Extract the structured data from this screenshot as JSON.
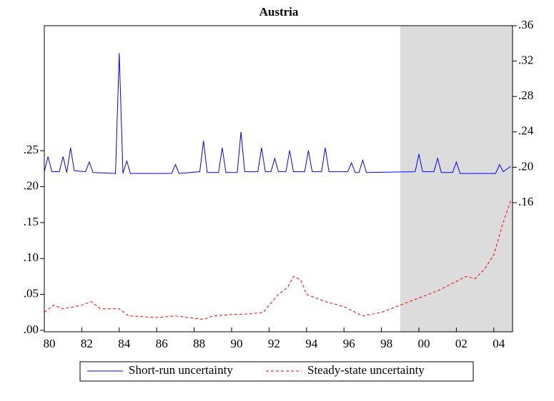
{
  "chart_data": {
    "type": "line",
    "title": "Austria",
    "xlim": [
      1980,
      2005
    ],
    "ylim": [
      -0.002,
      0.424
    ],
    "y2lim": [
      0.014,
      0.36
    ],
    "xticks": [
      {
        "value": 1980,
        "label": "80"
      },
      {
        "value": 1982,
        "label": "82"
      },
      {
        "value": 1984,
        "label": "84"
      },
      {
        "value": 1986,
        "label": "86"
      },
      {
        "value": 1988,
        "label": "88"
      },
      {
        "value": 1990,
        "label": "90"
      },
      {
        "value": 1992,
        "label": "92"
      },
      {
        "value": 1994,
        "label": "94"
      },
      {
        "value": 1996,
        "label": "96"
      },
      {
        "value": 1998,
        "label": "98"
      },
      {
        "value": 2000,
        "label": "00"
      },
      {
        "value": 2002,
        "label": "02"
      },
      {
        "value": 2004,
        "label": "04"
      }
    ],
    "yticks": [
      {
        "value": 0,
        "label": ".00"
      },
      {
        "value": 0.05,
        "label": ".05"
      },
      {
        "value": 0.1,
        "label": ".10"
      },
      {
        "value": 0.15,
        "label": ".15"
      },
      {
        "value": 0.2,
        "label": ".20"
      },
      {
        "value": 0.25,
        "label": ".25"
      }
    ],
    "y2ticks": [
      {
        "value": 0.16,
        "label": ".16"
      },
      {
        "value": 0.2,
        "label": ".20"
      },
      {
        "value": 0.24,
        "label": ".24"
      },
      {
        "value": 0.28,
        "label": ".28"
      },
      {
        "value": 0.32,
        "label": ".32"
      },
      {
        "value": 0.36,
        "label": ".36"
      }
    ],
    "shade": [
      1999,
      2005
    ],
    "shade_color": "#dcdcdc",
    "legend": "bottom",
    "series": [
      {
        "name": "Short-run uncertainty",
        "color": "#0000ff",
        "dash": false,
        "axis": "y2",
        "x": [
          1980.0,
          1980.2,
          1980.4,
          1980.8,
          1981.0,
          1981.2,
          1981.4,
          1981.6,
          1982.2,
          1982.4,
          1982.6,
          1983.8,
          1984.0,
          1984.2,
          1984.4,
          1984.6,
          1986.8,
          1987.0,
          1987.2,
          1988.3,
          1988.5,
          1988.7,
          1989.3,
          1989.5,
          1989.7,
          1990.3,
          1990.5,
          1990.7,
          1991.4,
          1991.6,
          1991.8,
          1992.1,
          1992.3,
          1992.5,
          1992.9,
          1993.1,
          1993.3,
          1993.9,
          1994.1,
          1994.3,
          1994.8,
          1995.0,
          1995.2,
          1996.2,
          1996.4,
          1996.6,
          1996.8,
          1997.0,
          1997.2,
          1999.8,
          2000.0,
          2000.2,
          2000.8,
          2001.0,
          2001.2,
          2001.8,
          2002.0,
          2002.2,
          2004.1,
          2004.3,
          2004.5,
          2004.9
        ],
        "values": [
          0.195,
          0.212,
          0.195,
          0.195,
          0.212,
          0.194,
          0.222,
          0.196,
          0.195,
          0.206,
          0.194,
          0.193,
          0.329,
          0.193,
          0.207,
          0.193,
          0.193,
          0.203,
          0.193,
          0.195,
          0.23,
          0.194,
          0.194,
          0.222,
          0.194,
          0.194,
          0.24,
          0.195,
          0.195,
          0.222,
          0.195,
          0.195,
          0.21,
          0.195,
          0.195,
          0.219,
          0.195,
          0.195,
          0.219,
          0.195,
          0.195,
          0.222,
          0.195,
          0.195,
          0.205,
          0.194,
          0.194,
          0.208,
          0.194,
          0.195,
          0.215,
          0.195,
          0.195,
          0.21,
          0.194,
          0.194,
          0.206,
          0.193,
          0.193,
          0.203,
          0.195,
          0.201
        ]
      },
      {
        "name": "Steady-state uncertainty",
        "color": "#ff0000",
        "dash": true,
        "axis": "y",
        "x": [
          1980.0,
          1980.5,
          1981.0,
          1982.0,
          1982.5,
          1983.0,
          1984.0,
          1984.5,
          1986.0,
          1987.0,
          1988.0,
          1988.5,
          1989.0,
          1990.0,
          1991.0,
          1991.7,
          1992.0,
          1992.5,
          1993.0,
          1993.3,
          1993.7,
          1994.0,
          1994.5,
          1995.0,
          1996.0,
          1997.0,
          1998.0,
          1999.0,
          1999.5,
          2000.0,
          2001.0,
          2002.0,
          2002.5,
          2003.0,
          2003.5,
          2004.0,
          2004.5,
          2004.9
        ],
        "values": [
          0.025,
          0.035,
          0.03,
          0.035,
          0.04,
          0.03,
          0.03,
          0.02,
          0.018,
          0.02,
          0.017,
          0.015,
          0.02,
          0.022,
          0.023,
          0.025,
          0.035,
          0.05,
          0.06,
          0.075,
          0.07,
          0.05,
          0.045,
          0.04,
          0.033,
          0.02,
          0.025,
          0.035,
          0.04,
          0.045,
          0.055,
          0.068,
          0.075,
          0.072,
          0.085,
          0.105,
          0.15,
          0.18
        ]
      }
    ]
  }
}
